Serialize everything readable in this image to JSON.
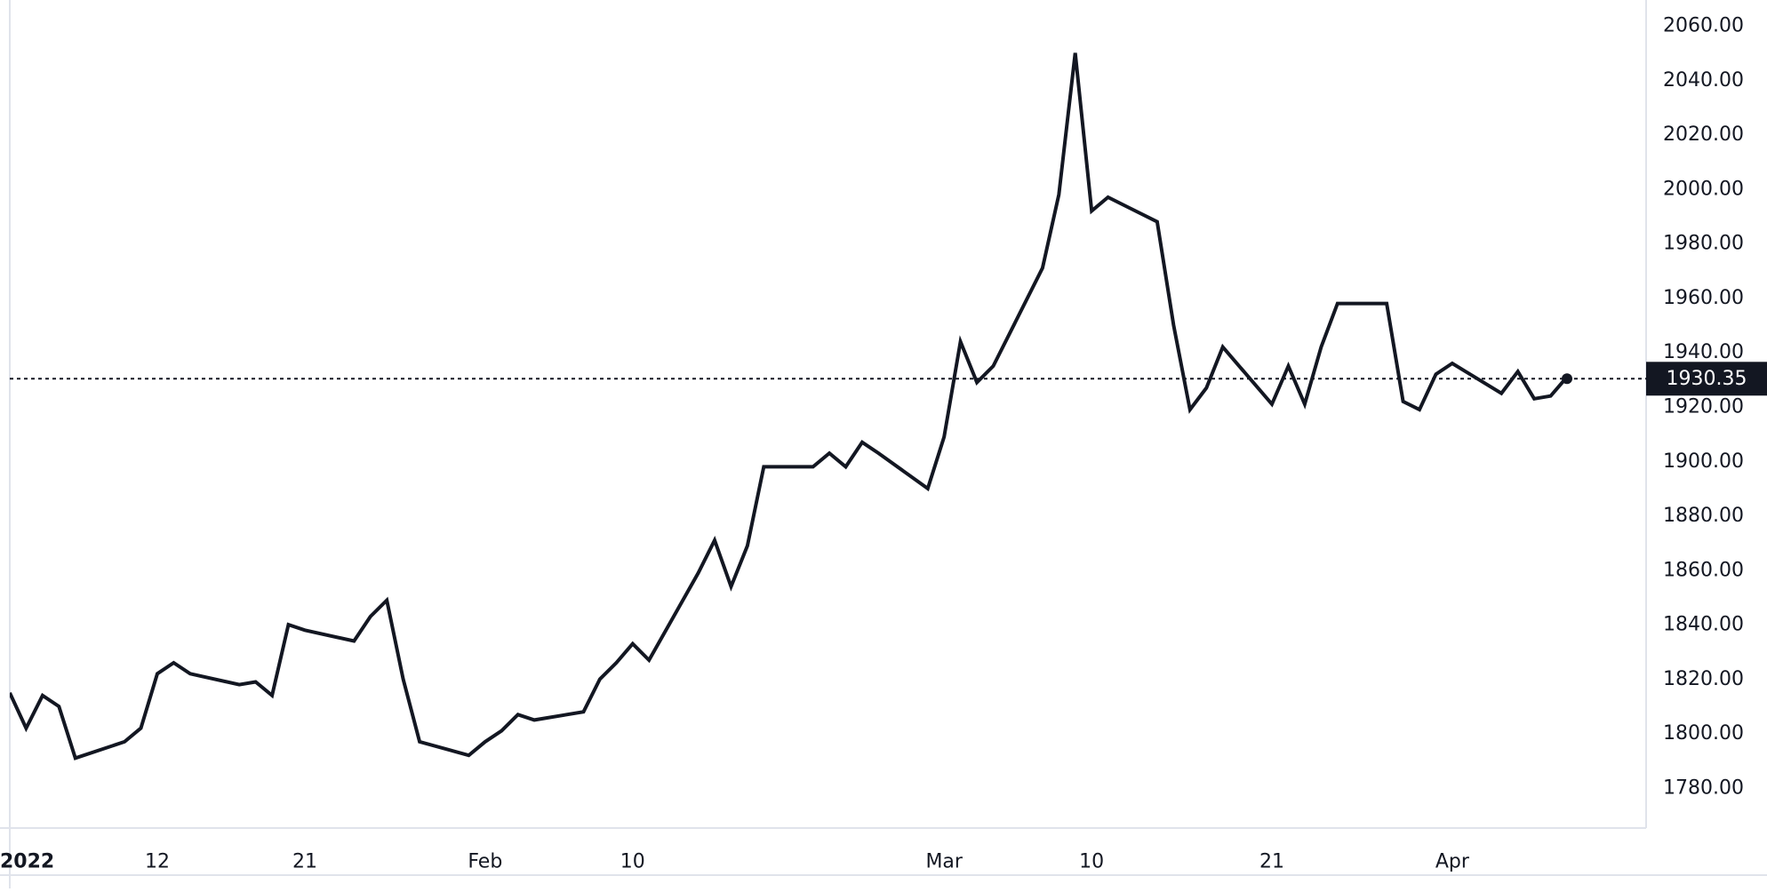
{
  "chart_data": {
    "type": "line",
    "title": "",
    "xlabel": "",
    "ylabel": "",
    "grid": false,
    "ylim": [
      1767,
      2064
    ],
    "y_ticks": [
      1780,
      1800,
      1820,
      1840,
      1860,
      1880,
      1900,
      1920,
      1940,
      1960,
      1980,
      2000,
      2020,
      2040,
      2060
    ],
    "y_tick_labels": [
      "1780.00",
      "1800.00",
      "1820.00",
      "1840.00",
      "1860.00",
      "1880.00",
      "1900.00",
      "1920.00",
      "1940.00",
      "1960.00",
      "1980.00",
      "2000.00",
      "2020.00",
      "2040.00",
      "2060.00"
    ],
    "x_ticks": [
      {
        "label": "2022",
        "x": "2022-01-03"
      },
      {
        "label": "12",
        "x": "2022-01-12"
      },
      {
        "label": "21",
        "x": "2022-01-21"
      },
      {
        "label": "Feb",
        "x": "2022-02-01"
      },
      {
        "label": "10",
        "x": "2022-02-10"
      },
      {
        "label": "Mar",
        "x": "2022-03-01"
      },
      {
        "label": "10",
        "x": "2022-03-10"
      },
      {
        "label": "21",
        "x": "2022-03-21"
      },
      {
        "label": "Apr",
        "x": "2022-04-01"
      }
    ],
    "current_price": 1930.35,
    "current_price_label": "1930.35",
    "line_color": "#131722",
    "series": [
      {
        "x": [
          "2022-01-03",
          "2022-01-04",
          "2022-01-05",
          "2022-01-06",
          "2022-01-07",
          "2022-01-10",
          "2022-01-11",
          "2022-01-12",
          "2022-01-13",
          "2022-01-14",
          "2022-01-17",
          "2022-01-18",
          "2022-01-19",
          "2022-01-20",
          "2022-01-21",
          "2022-01-24",
          "2022-01-25",
          "2022-01-26",
          "2022-01-27",
          "2022-01-28",
          "2022-01-31",
          "2022-02-01",
          "2022-02-02",
          "2022-02-03",
          "2022-02-04",
          "2022-02-07",
          "2022-02-08",
          "2022-02-09",
          "2022-02-10",
          "2022-02-11",
          "2022-02-14",
          "2022-02-15",
          "2022-02-16",
          "2022-02-17",
          "2022-02-18",
          "2022-02-21",
          "2022-02-22",
          "2022-02-23",
          "2022-02-24",
          "2022-02-25",
          "2022-02-28",
          "2022-03-01",
          "2022-03-02",
          "2022-03-03",
          "2022-03-04",
          "2022-03-07",
          "2022-03-08",
          "2022-03-09",
          "2022-03-10",
          "2022-03-11",
          "2022-03-14",
          "2022-03-15",
          "2022-03-16",
          "2022-03-17",
          "2022-03-18",
          "2022-03-21",
          "2022-03-22",
          "2022-03-23",
          "2022-03-24",
          "2022-03-25",
          "2022-03-28",
          "2022-03-29",
          "2022-03-30",
          "2022-03-31",
          "2022-04-01",
          "2022-04-04",
          "2022-04-05",
          "2022-04-06",
          "2022-04-07",
          "2022-04-08"
        ],
        "values": [
          1815,
          1802,
          1814,
          1810,
          1791,
          1797,
          1802,
          1822,
          1826,
          1822,
          1818,
          1819,
          1814,
          1840,
          1838,
          1834,
          1843,
          1849,
          1820,
          1797,
          1792,
          1797,
          1801,
          1807,
          1805,
          1808,
          1820,
          1826,
          1833,
          1827,
          1859,
          1871,
          1854,
          1869,
          1898,
          1898,
          1903,
          1898,
          1907,
          1903,
          1890,
          1909,
          1944,
          1929,
          1935,
          1971,
          1998,
          2050,
          1992,
          1997,
          1988,
          1950,
          1919,
          1927,
          1942,
          1921,
          1935,
          1921,
          1942,
          1958,
          1958,
          1922,
          1919,
          1932,
          1936,
          1925,
          1933,
          1923,
          1924,
          1931
        ]
      }
    ]
  }
}
